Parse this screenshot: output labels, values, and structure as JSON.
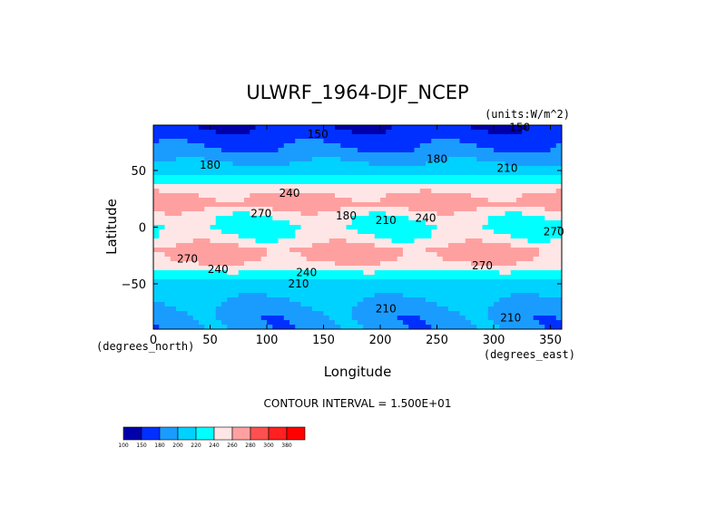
{
  "chart_data": {
    "type": "heatmap",
    "title": "ULWRF_1964-DJF_NCEP",
    "units_label": "(units:W/m^2)",
    "xlabel": "Longitude",
    "ylabel": "Latitude",
    "x_unit_label": "(degrees_east)",
    "y_unit_label": "(degrees_north)",
    "xlim": [
      0,
      360
    ],
    "ylim": [
      -90,
      90
    ],
    "x_ticks": [
      0,
      50,
      100,
      150,
      200,
      250,
      300,
      350
    ],
    "y_ticks": [
      50,
      0,
      -50
    ],
    "x_tick_labels": [
      "0",
      "50",
      "100",
      "150",
      "200",
      "250",
      "300",
      "350"
    ],
    "y_tick_labels": [
      "50",
      "0",
      "−50"
    ],
    "contour_interval_text": "CONTOUR INTERVAL = 1.500E+01",
    "colorbar": {
      "levels": [
        100,
        150,
        180,
        200,
        220,
        240,
        260,
        280,
        300,
        380
      ],
      "labels": [
        "100",
        "150",
        "180",
        "200",
        "220",
        "240",
        "260",
        "280",
        "300",
        "380"
      ],
      "colors": [
        "#0000aa",
        "#0030ff",
        "#1a9cff",
        "#00d2ff",
        "#00ffff",
        "#ffe6e6",
        "#ffa0a0",
        "#ff5050",
        "#ff2020",
        "#ff0000"
      ]
    },
    "zonal_profile": [
      {
        "lat": 90,
        "value": 150
      },
      {
        "lat": 80,
        "value": 165
      },
      {
        "lat": 70,
        "value": 180
      },
      {
        "lat": 60,
        "value": 195
      },
      {
        "lat": 50,
        "value": 210
      },
      {
        "lat": 40,
        "value": 235
      },
      {
        "lat": 30,
        "value": 260
      },
      {
        "lat": 20,
        "value": 270
      },
      {
        "lat": 10,
        "value": 245
      },
      {
        "lat": 0,
        "value": 235
      },
      {
        "lat": -10,
        "value": 245
      },
      {
        "lat": -20,
        "value": 268
      },
      {
        "lat": -30,
        "value": 262
      },
      {
        "lat": -40,
        "value": 238
      },
      {
        "lat": -50,
        "value": 210
      },
      {
        "lat": -60,
        "value": 205
      },
      {
        "lat": -70,
        "value": 195
      },
      {
        "lat": -80,
        "value": 190
      },
      {
        "lat": -90,
        "value": 190
      }
    ],
    "contour_labels": [
      {
        "text": "150",
        "x": 145,
        "y": 82
      },
      {
        "text": "150",
        "x": 323,
        "y": 88
      },
      {
        "text": "180",
        "x": 50,
        "y": 55
      },
      {
        "text": "180",
        "x": 250,
        "y": 60
      },
      {
        "text": "210",
        "x": 312,
        "y": 52
      },
      {
        "text": "240",
        "x": 120,
        "y": 30
      },
      {
        "text": "270",
        "x": 95,
        "y": 12
      },
      {
        "text": "180",
        "x": 170,
        "y": 10
      },
      {
        "text": "210",
        "x": 205,
        "y": 6
      },
      {
        "text": "240",
        "x": 240,
        "y": 8
      },
      {
        "text": "240",
        "x": 57,
        "y": -37
      },
      {
        "text": "240",
        "x": 135,
        "y": -40
      },
      {
        "text": "210",
        "x": 128,
        "y": -50
      },
      {
        "text": "270",
        "x": 290,
        "y": -34
      },
      {
        "text": "210",
        "x": 205,
        "y": -72
      },
      {
        "text": "210",
        "x": 315,
        "y": -80
      },
      {
        "text": "270",
        "x": 353,
        "y": -4
      },
      {
        "text": "270",
        "x": 30,
        "y": -28
      }
    ]
  }
}
